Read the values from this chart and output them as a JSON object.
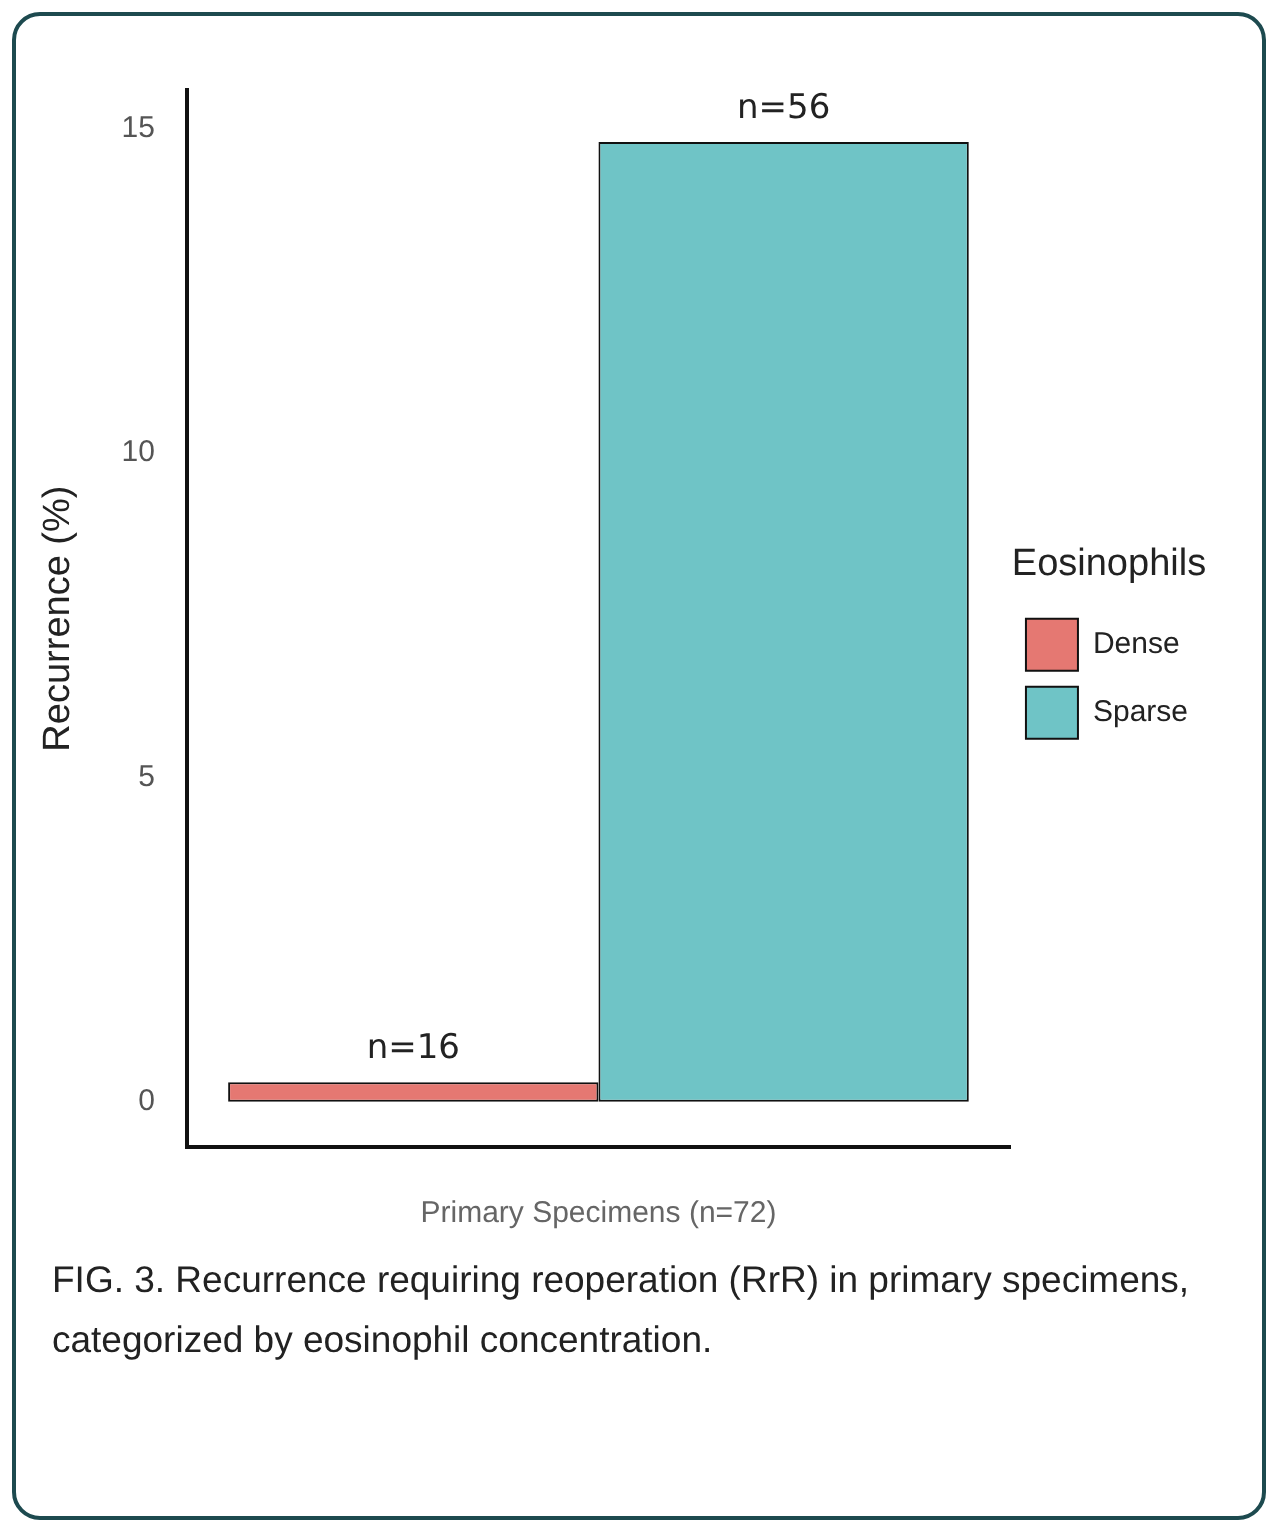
{
  "chart_data": {
    "type": "bar",
    "categories": [
      null
    ],
    "xlabel": "Primary Specimens (n=72)",
    "ylabel": "Recurrence (%)",
    "legend_title": "Eosinophils",
    "legend": "right",
    "series": [
      {
        "name": "Dense",
        "color": "#e57872",
        "values": [
          0.3
        ]
      },
      {
        "name": "Sparse",
        "color": "#6fc4c6",
        "values": [
          14.8
        ]
      }
    ],
    "ylim": [
      -0.7,
      15.6
    ],
    "yticks": [
      0,
      5,
      10,
      15
    ],
    "grid": false,
    "annotations": [
      {
        "text": "n=16",
        "y": 0.3
      },
      {
        "text": "n=56",
        "y": 14.8
      },
      "FIG. 3.    Recurrence requiring reoperation (RrR) in primary specimens, categorized by eosinophil concentration."
    ]
  }
}
